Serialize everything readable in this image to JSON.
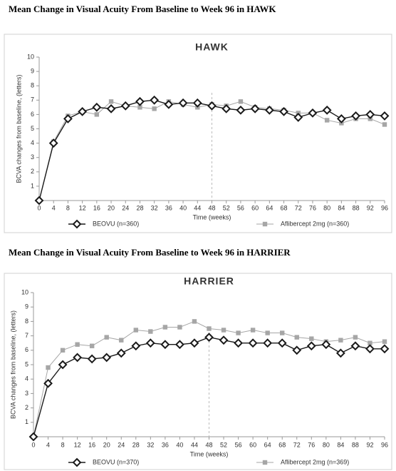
{
  "chart_data": [
    {
      "type": "line",
      "heading": "Mean Change in Visual Acuity From Baseline to Week 96 in HAWK",
      "title": "HAWK",
      "xlabel": "Time (weeks)",
      "ylabel": "BCVA changes from baseline, (letters)",
      "x": [
        0,
        4,
        8,
        12,
        16,
        20,
        24,
        28,
        32,
        36,
        40,
        44,
        48,
        52,
        56,
        60,
        64,
        68,
        72,
        76,
        80,
        84,
        88,
        92,
        96
      ],
      "xlim": [
        0,
        96
      ],
      "xticks": [
        0,
        4,
        8,
        12,
        16,
        20,
        24,
        28,
        32,
        36,
        40,
        44,
        48,
        52,
        56,
        60,
        64,
        68,
        72,
        76,
        80,
        84,
        88,
        92,
        96
      ],
      "ylim": [
        0,
        10
      ],
      "yticks": [
        1,
        2,
        3,
        4,
        5,
        6,
        7,
        8,
        9,
        10
      ],
      "ref_x": 48,
      "series": [
        {
          "name": "BEOVU (n=360)",
          "color": "#1a1a1a",
          "marker": "diamond",
          "values": [
            0,
            4.0,
            5.7,
            6.2,
            6.5,
            6.4,
            6.6,
            6.9,
            7.0,
            6.7,
            6.8,
            6.8,
            6.6,
            6.4,
            6.3,
            6.4,
            6.3,
            6.2,
            5.8,
            6.1,
            6.3,
            5.7,
            5.9,
            6.0,
            5.9
          ]
        },
        {
          "name": "Aflibercept 2mg (n=360)",
          "color": "#a6a6a6",
          "marker": "square",
          "values": [
            0,
            4.1,
            5.9,
            6.2,
            6.0,
            6.9,
            6.6,
            6.5,
            6.4,
            6.9,
            6.7,
            6.5,
            6.7,
            6.6,
            6.9,
            6.5,
            6.4,
            6.3,
            6.1,
            6.1,
            5.6,
            5.4,
            5.7,
            5.7,
            5.3
          ]
        }
      ]
    },
    {
      "type": "line",
      "heading": "Mean Change in Visual Acuity From Baseline to Week 96 in HARRIER",
      "title": "HARRIER",
      "xlabel": "Time (weeks)",
      "ylabel": "BCVA changes from baseline, (letters)",
      "x": [
        0,
        4,
        8,
        12,
        16,
        20,
        24,
        28,
        32,
        36,
        40,
        44,
        48,
        52,
        56,
        60,
        64,
        68,
        72,
        76,
        80,
        84,
        88,
        92,
        96
      ],
      "xlim": [
        0,
        96
      ],
      "xticks": [
        0,
        4,
        8,
        12,
        16,
        20,
        24,
        28,
        32,
        36,
        40,
        44,
        48,
        52,
        56,
        60,
        64,
        68,
        72,
        76,
        80,
        84,
        88,
        92,
        96
      ],
      "ylim": [
        0,
        10
      ],
      "yticks": [
        1,
        2,
        3,
        4,
        5,
        6,
        7,
        8,
        9,
        10
      ],
      "ref_x": 48,
      "series": [
        {
          "name": "BEOVU (n=370)",
          "color": "#1a1a1a",
          "marker": "diamond",
          "values": [
            0,
            3.7,
            5.0,
            5.5,
            5.4,
            5.5,
            5.8,
            6.3,
            6.5,
            6.4,
            6.4,
            6.5,
            6.9,
            6.7,
            6.5,
            6.5,
            6.5,
            6.5,
            6.0,
            6.3,
            6.4,
            5.8,
            6.3,
            6.1,
            6.1
          ]
        },
        {
          "name": "Aflibercept 2mg (n=369)",
          "color": "#a6a6a6",
          "marker": "square",
          "values": [
            0,
            4.8,
            6.0,
            6.4,
            6.3,
            6.9,
            6.7,
            7.4,
            7.3,
            7.6,
            7.6,
            8.0,
            7.5,
            7.4,
            7.2,
            7.4,
            7.2,
            7.2,
            6.9,
            6.8,
            6.6,
            6.7,
            6.9,
            6.5,
            6.6
          ]
        }
      ]
    }
  ]
}
